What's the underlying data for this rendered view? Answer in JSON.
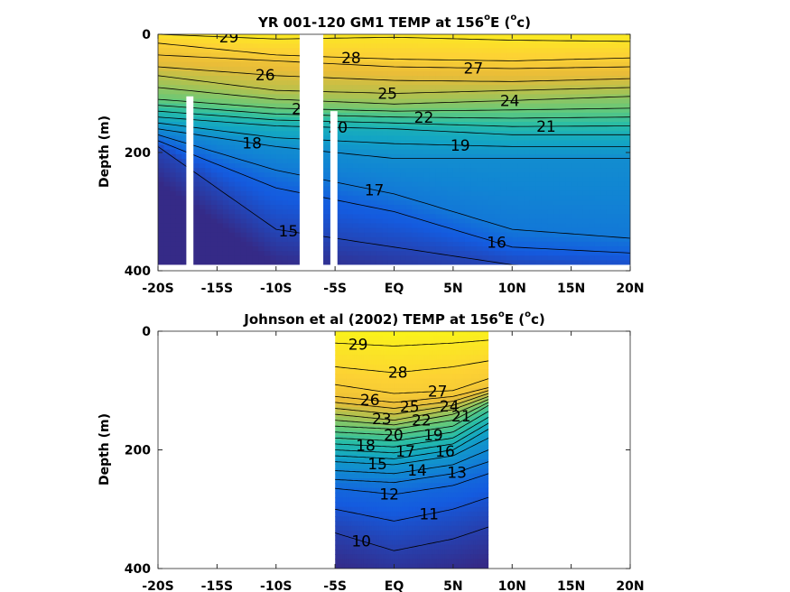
{
  "chart_data": [
    {
      "type": "contour",
      "title": "YR 001-120 GM1 TEMP at 156",
      "title_deg": "o",
      "title_suffix": "E (",
      "title_unit_sup": "o",
      "title_unit": "c)",
      "xlabel": "",
      "ylabel": "Depth (m)",
      "xlim": [
        -20,
        20
      ],
      "ylim": [
        0,
        400
      ],
      "y_reversed": true,
      "x_ticks": [
        -20,
        -15,
        -10,
        -5,
        0,
        5,
        10,
        15,
        20
      ],
      "x_tick_labels": [
        "-20S",
        "-15S",
        "-10S",
        "-5S",
        "EQ",
        "5N",
        "10N",
        "15N",
        "20N"
      ],
      "y_ticks": [
        0,
        200,
        400
      ],
      "y_tick_labels": [
        "0",
        "200",
        "400"
      ],
      "data_x_range": [
        -20,
        20
      ],
      "data_depth_max": 390,
      "masked_gaps": [
        {
          "x": [
            -17.6,
            -17.0
          ],
          "depth": [
            105,
            400
          ]
        },
        {
          "x": [
            -8.0,
            -6.0
          ],
          "depth": [
            0,
            400
          ]
        },
        {
          "x": [
            -5.4,
            -4.8
          ],
          "depth": [
            130,
            400
          ]
        }
      ],
      "isotherms": [
        {
          "label": "29",
          "x": [
            -20,
            -10,
            0,
            10,
            20
          ],
          "depth": [
            0,
            8,
            5,
            10,
            12
          ]
        },
        {
          "label": "28",
          "x": [
            -20,
            -10,
            0,
            10,
            20
          ],
          "depth": [
            15,
            35,
            42,
            45,
            40
          ]
        },
        {
          "label": "27",
          "x": [
            -20,
            -10,
            0,
            10,
            20
          ],
          "depth": [
            35,
            45,
            55,
            58,
            55
          ]
        },
        {
          "label": "26",
          "x": [
            -20,
            -10,
            0,
            10,
            20
          ],
          "depth": [
            55,
            70,
            78,
            80,
            75
          ]
        },
        {
          "label": "25",
          "x": [
            -20,
            -10,
            0,
            10,
            20
          ],
          "depth": [
            70,
            95,
            100,
            95,
            90
          ]
        },
        {
          "label": "24",
          "x": [
            -20,
            -10,
            0,
            10,
            20
          ],
          "depth": [
            90,
            110,
            118,
            112,
            105
          ]
        },
        {
          "label": "23",
          "x": [
            -20,
            -10,
            0,
            10,
            20
          ],
          "depth": [
            110,
            125,
            130,
            128,
            125
          ]
        },
        {
          "label": "22",
          "x": [
            -20,
            -10,
            0,
            10,
            20
          ],
          "depth": [
            120,
            135,
            140,
            142,
            140
          ]
        },
        {
          "label": "21",
          "x": [
            -20,
            -10,
            0,
            10,
            20
          ],
          "depth": [
            130,
            145,
            150,
            156,
            155
          ]
        },
        {
          "label": "20",
          "x": [
            -20,
            -10,
            0,
            10,
            20
          ],
          "depth": [
            140,
            155,
            160,
            170,
            170
          ]
        },
        {
          "label": "19",
          "x": [
            -20,
            -10,
            0,
            10,
            20
          ],
          "depth": [
            150,
            175,
            185,
            190,
            190
          ]
        },
        {
          "label": "18",
          "x": [
            -20,
            -10,
            0,
            10,
            20
          ],
          "depth": [
            160,
            190,
            210,
            210,
            210
          ]
        },
        {
          "label": "17",
          "x": [
            -20,
            -10,
            0,
            10,
            20
          ],
          "depth": [
            170,
            230,
            270,
            330,
            345
          ]
        },
        {
          "label": "16",
          "x": [
            -20,
            -10,
            0,
            10,
            20
          ],
          "depth": [
            180,
            260,
            300,
            360,
            370
          ]
        },
        {
          "label": "15",
          "x": [
            -20,
            -10,
            0,
            10,
            20
          ],
          "depth": [
            190,
            330,
            360,
            390,
            400
          ]
        }
      ],
      "colormap": "parula",
      "colorbar_limits": [
        14,
        30
      ]
    },
    {
      "type": "contour",
      "title": "Johnson et al (2002) TEMP at 156",
      "title_deg": "o",
      "title_suffix": "E (",
      "title_unit_sup": "o",
      "title_unit": "c)",
      "xlabel": "",
      "ylabel": "Depth (m)",
      "xlim": [
        -20,
        20
      ],
      "ylim": [
        0,
        400
      ],
      "y_reversed": true,
      "x_ticks": [
        -20,
        -15,
        -10,
        -5,
        0,
        5,
        10,
        15,
        20
      ],
      "x_tick_labels": [
        "-20S",
        "-15S",
        "-10S",
        "-5S",
        "EQ",
        "5N",
        "10N",
        "15N",
        "20N"
      ],
      "y_ticks": [
        0,
        200,
        400
      ],
      "y_tick_labels": [
        "0",
        "200",
        "400"
      ],
      "data_x_range": [
        -5,
        8
      ],
      "data_depth_max": 400,
      "masked_gaps": [],
      "isotherms": [
        {
          "label": "29",
          "x": [
            -5,
            0,
            5,
            8
          ],
          "depth": [
            20,
            25,
            20,
            15
          ]
        },
        {
          "label": "28",
          "x": [
            -5,
            0,
            5,
            8
          ],
          "depth": [
            60,
            70,
            60,
            50
          ]
        },
        {
          "label": "27",
          "x": [
            -5,
            0,
            5,
            8
          ],
          "depth": [
            90,
            105,
            100,
            80
          ]
        },
        {
          "label": "26",
          "x": [
            -5,
            0,
            5,
            8
          ],
          "depth": [
            110,
            120,
            110,
            95
          ]
        },
        {
          "label": "25",
          "x": [
            -5,
            0,
            5,
            8
          ],
          "depth": [
            120,
            130,
            118,
            100
          ]
        },
        {
          "label": "24",
          "x": [
            -5,
            0,
            5,
            8
          ],
          "depth": [
            130,
            140,
            125,
            105
          ]
        },
        {
          "label": "23",
          "x": [
            -5,
            0,
            5,
            8
          ],
          "depth": [
            140,
            150,
            132,
            110
          ]
        },
        {
          "label": "22",
          "x": [
            -5,
            0,
            5,
            8
          ],
          "depth": [
            150,
            158,
            140,
            115
          ]
        },
        {
          "label": "21",
          "x": [
            -5,
            0,
            5,
            8
          ],
          "depth": [
            160,
            165,
            150,
            120
          ]
        },
        {
          "label": "20",
          "x": [
            -5,
            0,
            5,
            8
          ],
          "depth": [
            170,
            175,
            160,
            125
          ]
        },
        {
          "label": "19",
          "x": [
            -5,
            0,
            5,
            8
          ],
          "depth": [
            180,
            185,
            170,
            135
          ]
        },
        {
          "label": "18",
          "x": [
            -5,
            0,
            5,
            8
          ],
          "depth": [
            190,
            195,
            180,
            145
          ]
        },
        {
          "label": "17",
          "x": [
            -5,
            0,
            5,
            8
          ],
          "depth": [
            200,
            205,
            190,
            155
          ]
        },
        {
          "label": "16",
          "x": [
            -5,
            0,
            5,
            8
          ],
          "depth": [
            210,
            215,
            200,
            165
          ]
        },
        {
          "label": "15",
          "x": [
            -5,
            0,
            5,
            8
          ],
          "depth": [
            220,
            225,
            210,
            180
          ]
        },
        {
          "label": "14",
          "x": [
            -5,
            0,
            5,
            8
          ],
          "depth": [
            235,
            240,
            225,
            200
          ]
        },
        {
          "label": "13",
          "x": [
            -5,
            0,
            5,
            8
          ],
          "depth": [
            250,
            255,
            240,
            220
          ]
        },
        {
          "label": "12",
          "x": [
            -5,
            0,
            5,
            8
          ],
          "depth": [
            265,
            275,
            260,
            240
          ]
        },
        {
          "label": "11",
          "x": [
            -5,
            0,
            5,
            8
          ],
          "depth": [
            300,
            320,
            300,
            280
          ]
        },
        {
          "label": "10",
          "x": [
            -5,
            0,
            5,
            8
          ],
          "depth": [
            340,
            370,
            350,
            330
          ]
        }
      ],
      "colormap": "parula",
      "colorbar_limits": [
        9,
        30
      ]
    }
  ]
}
